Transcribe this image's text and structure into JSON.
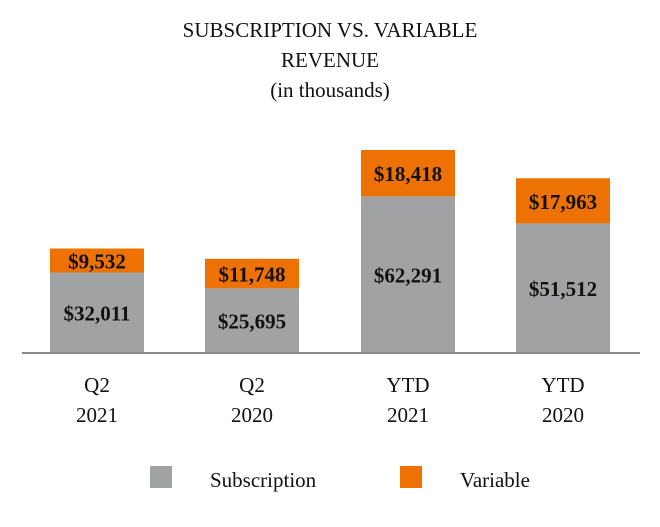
{
  "chart_data": {
    "type": "bar",
    "stacked": true,
    "title": [
      "SUBSCRIPTION VS. VARIABLE",
      "REVENUE",
      "(in thousands)"
    ],
    "categories": [
      [
        "Q2",
        "2021"
      ],
      [
        "Q2",
        "2020"
      ],
      [
        "YTD",
        "2021"
      ],
      [
        "YTD",
        "2020"
      ]
    ],
    "series": [
      {
        "name": "Subscription",
        "color": "#a0a2a3",
        "values": [
          32011,
          25695,
          62291,
          51512
        ],
        "labels": [
          "$32,011",
          "$25,695",
          "$62,291",
          "$51,512"
        ]
      },
      {
        "name": "Variable",
        "color": "#ee7203",
        "values": [
          9532,
          11748,
          18418,
          17963
        ],
        "labels": [
          "$9,532",
          "$11,748",
          "$18,418",
          "$17,963"
        ]
      }
    ],
    "ylim": [
      0,
      85000
    ],
    "xlabel": "",
    "ylabel": "",
    "grid": false,
    "legend_position": "bottom"
  }
}
